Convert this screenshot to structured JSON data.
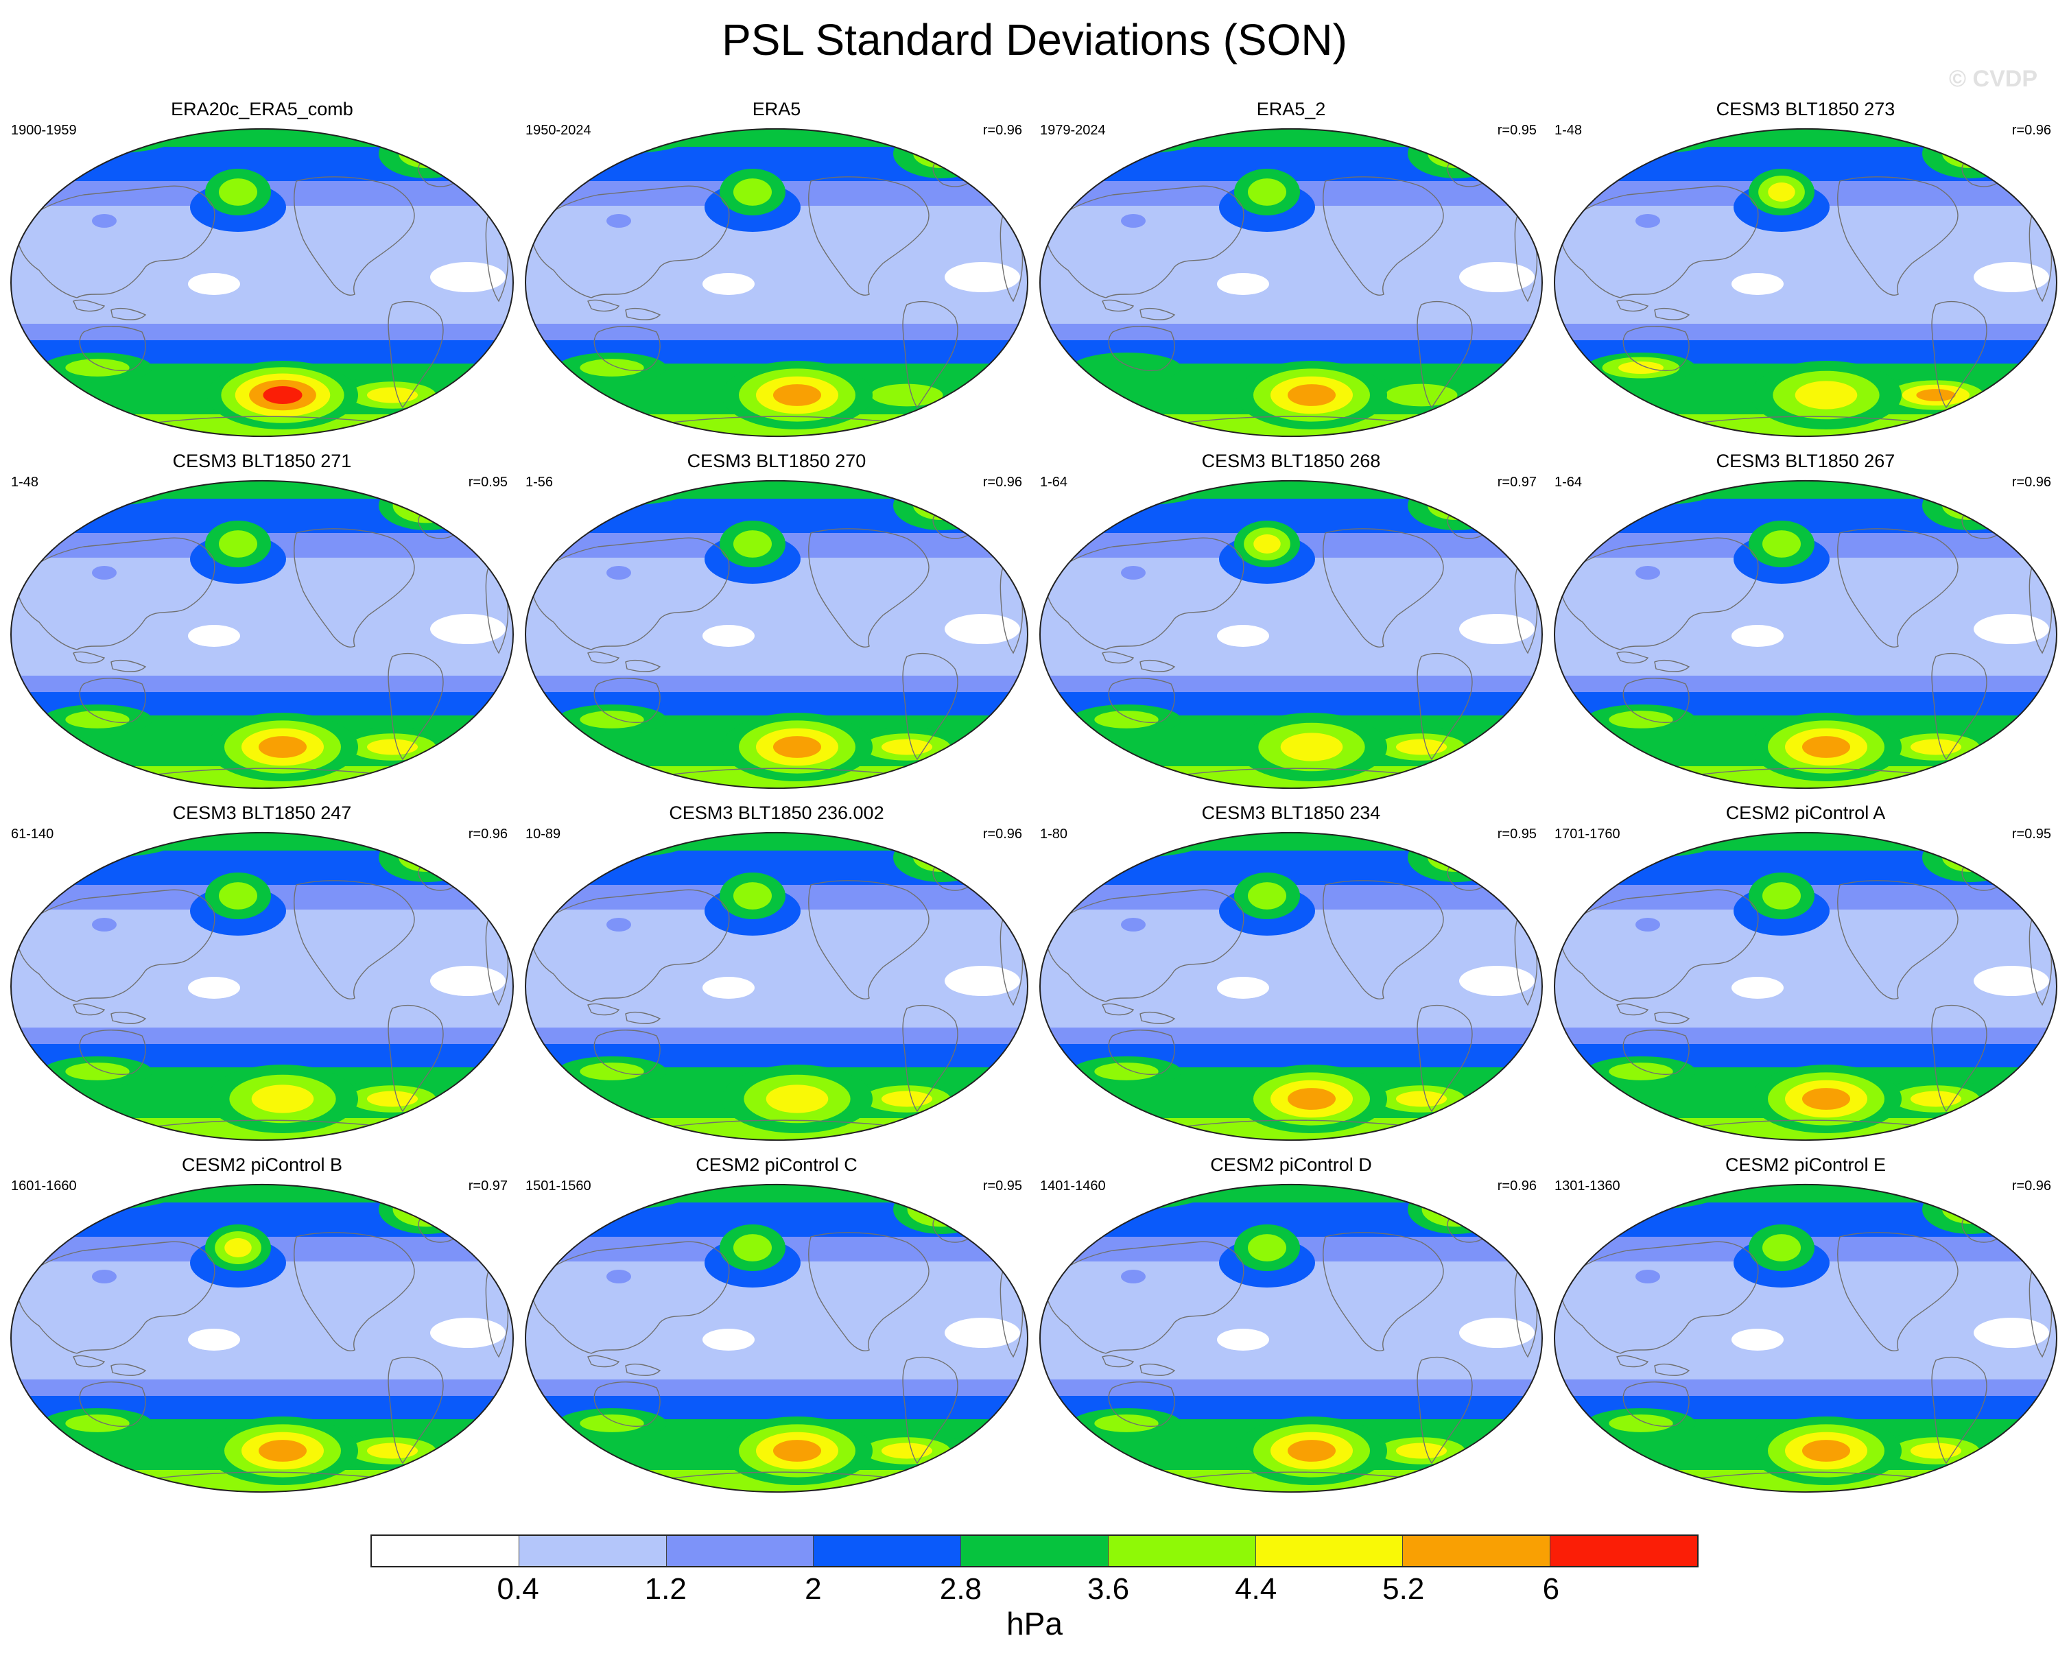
{
  "figure": {
    "title": "PSL Standard Deviations (SON)",
    "watermark": "© CVDP"
  },
  "colors": [
    "#ffffff",
    "#b4c6fa",
    "#7d93f9",
    "#0a5afa",
    "#06c33e",
    "#8ff906",
    "#f9f906",
    "#f9a003",
    "#fb1e06"
  ],
  "chart_data": {
    "type": "heatmap",
    "title": "PSL Standard Deviations (SON)",
    "projection": "Robinson (global, Pacific-centered)",
    "colorbar": {
      "levels": [
        0.4,
        1.2,
        2,
        2.8,
        3.6,
        4.4,
        5.2,
        6
      ],
      "tick_labels": [
        "0.4",
        "1.2",
        "2",
        "2.8",
        "3.6",
        "4.4",
        "5.2",
        "6"
      ],
      "unit": "hPa",
      "placement": "bottom"
    },
    "panels": [
      {
        "name": "ERA20c_ERA5_comb",
        "years": "1900-1959",
        "r": "",
        "maxima": {
          "npac": 3.6,
          "ppole": 4.4,
          "eur": 3.6,
          "sha": 6.0,
          "shb": 4.4,
          "shc": 3.6
        }
      },
      {
        "name": "ERA5",
        "years": "1950-2024",
        "r": "r=0.96",
        "maxima": {
          "npac": 3.6,
          "ppole": 3.6,
          "eur": 3.6,
          "sha": 5.2,
          "shb": 3.6,
          "shc": 3.6
        }
      },
      {
        "name": "ERA5_2",
        "years": "1979-2024",
        "r": "r=0.95",
        "maxima": {
          "npac": 3.6,
          "ppole": 3.6,
          "eur": 3.6,
          "sha": 5.2,
          "shb": 3.6,
          "shc": 2.8
        }
      },
      {
        "name": "CESM3 BLT1850 273",
        "years": "1-48",
        "r": "r=0.96",
        "maxima": {
          "npac": 4.4,
          "ppole": 4.4,
          "eur": 3.6,
          "sha": 4.4,
          "shb": 5.2,
          "shc": 4.4
        }
      },
      {
        "name": "CESM3 BLT1850 271",
        "years": "1-48",
        "r": "r=0.95",
        "maxima": {
          "npac": 3.6,
          "ppole": 4.4,
          "eur": 4.4,
          "sha": 5.2,
          "shb": 4.4,
          "shc": 3.6
        }
      },
      {
        "name": "CESM3 BLT1850 270",
        "years": "1-56",
        "r": "r=0.96",
        "maxima": {
          "npac": 3.6,
          "ppole": 4.4,
          "eur": 3.6,
          "sha": 5.2,
          "shb": 4.4,
          "shc": 3.6
        }
      },
      {
        "name": "CESM3 BLT1850 268",
        "years": "1-64",
        "r": "r=0.97",
        "maxima": {
          "npac": 4.4,
          "ppole": 4.4,
          "eur": 3.6,
          "sha": 4.4,
          "shb": 4.4,
          "shc": 3.6
        }
      },
      {
        "name": "CESM3 BLT1850 267",
        "years": "1-64",
        "r": "r=0.96",
        "maxima": {
          "npac": 3.6,
          "ppole": 4.4,
          "eur": 3.6,
          "sha": 5.2,
          "shb": 4.4,
          "shc": 3.6
        }
      },
      {
        "name": "CESM3 BLT1850 247",
        "years": "61-140",
        "r": "r=0.96",
        "maxima": {
          "npac": 3.6,
          "ppole": 4.4,
          "eur": 3.6,
          "sha": 4.4,
          "shb": 4.4,
          "shc": 3.6
        }
      },
      {
        "name": "CESM3 BLT1850 236.002",
        "years": "10-89",
        "r": "r=0.96",
        "maxima": {
          "npac": 3.6,
          "ppole": 3.6,
          "eur": 3.6,
          "sha": 4.4,
          "shb": 4.4,
          "shc": 3.6
        }
      },
      {
        "name": "CESM3 BLT1850 234",
        "years": "1-80",
        "r": "r=0.95",
        "maxima": {
          "npac": 3.6,
          "ppole": 4.4,
          "eur": 3.6,
          "sha": 5.2,
          "shb": 4.4,
          "shc": 3.6
        }
      },
      {
        "name": "CESM2 piControl A",
        "years": "1701-1760",
        "r": "r=0.95",
        "maxima": {
          "npac": 3.6,
          "ppole": 4.4,
          "eur": 3.6,
          "sha": 5.2,
          "shb": 4.4,
          "shc": 3.6
        }
      },
      {
        "name": "CESM2 piControl B",
        "years": "1601-1660",
        "r": "r=0.97",
        "maxima": {
          "npac": 4.4,
          "ppole": 4.4,
          "eur": 4.4,
          "sha": 5.2,
          "shb": 4.4,
          "shc": 3.6
        }
      },
      {
        "name": "CESM2 piControl C",
        "years": "1501-1560",
        "r": "r=0.95",
        "maxima": {
          "npac": 3.6,
          "ppole": 4.4,
          "eur": 4.4,
          "sha": 5.2,
          "shb": 4.4,
          "shc": 3.6
        }
      },
      {
        "name": "CESM2 piControl D",
        "years": "1401-1460",
        "r": "r=0.96",
        "maxima": {
          "npac": 3.6,
          "ppole": 4.4,
          "eur": 4.4,
          "sha": 5.2,
          "shb": 4.4,
          "shc": 3.6
        }
      },
      {
        "name": "CESM2 piControl E",
        "years": "1301-1360",
        "r": "r=0.96",
        "maxima": {
          "npac": 3.6,
          "ppole": 4.4,
          "eur": 3.6,
          "sha": 5.2,
          "shb": 4.4,
          "shc": 3.6
        }
      }
    ]
  }
}
